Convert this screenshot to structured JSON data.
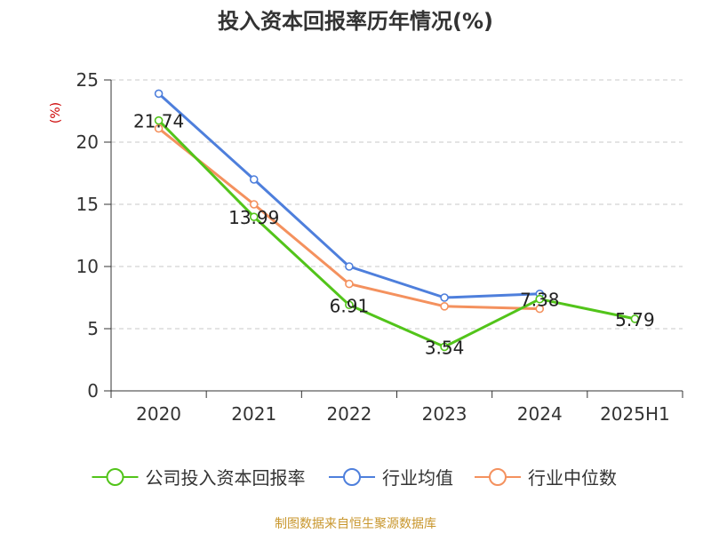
{
  "chart_data": {
    "type": "line",
    "title": "投入资本回报率历年情况(%)",
    "ylabel": "(%)",
    "xlabel": "",
    "categories": [
      "2020",
      "2021",
      "2022",
      "2023",
      "2024",
      "2025H1"
    ],
    "ylim": [
      0,
      25
    ],
    "yticks": [
      0,
      5,
      10,
      15,
      20,
      25
    ],
    "grid": true,
    "legend_position": "bottom",
    "series": [
      {
        "name": "公司投入资本回报率",
        "color": "#52c41a",
        "values": [
          21.74,
          13.99,
          6.91,
          3.54,
          7.38,
          5.79
        ],
        "data_labels": [
          "21.74",
          "13.99",
          "6.91",
          "3.54",
          "7.38",
          "5.79"
        ]
      },
      {
        "name": "行业均值",
        "color": "#4e7fdc",
        "values": [
          23.9,
          17.0,
          10.0,
          7.5,
          7.8,
          null
        ]
      },
      {
        "name": "行业中位数",
        "color": "#f4915e",
        "values": [
          21.1,
          15.0,
          8.6,
          6.8,
          6.6,
          null
        ]
      }
    ],
    "source": "制图数据来自恒生聚源数据库",
    "source_color": "#c8962c",
    "ylabel_color": "#cc0000"
  }
}
